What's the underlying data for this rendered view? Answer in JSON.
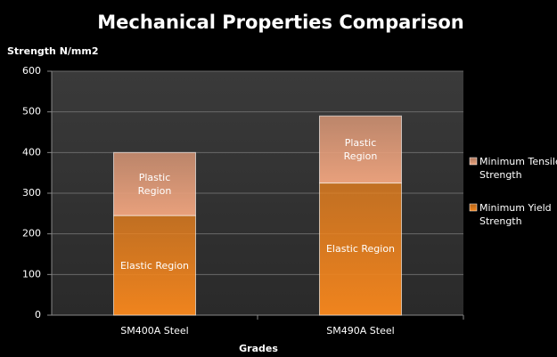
{
  "chart_data": {
    "type": "stacked-bar",
    "title": "Mechanical Properties Comparison",
    "y_label": "Strength N/mm2",
    "x_label": "Grades",
    "categories": [
      "SM400A Steel",
      "SM490A Steel"
    ],
    "series": [
      {
        "name": "Minimum Yield Strength",
        "color": "#f0841e",
        "values": [
          245,
          325
        ],
        "labels": [
          "Elastic Region",
          "Elastic Region"
        ]
      },
      {
        "name": "Minimum Tensile Strength",
        "color": "#e8a07c",
        "values": [
          155,
          165
        ],
        "labels": [
          "Plastic Region",
          "Plastic Region"
        ]
      }
    ],
    "ylim": [
      0,
      600
    ],
    "yticks": [
      0,
      100,
      200,
      300,
      400,
      500,
      600
    ],
    "grid": true,
    "legend": "right"
  }
}
